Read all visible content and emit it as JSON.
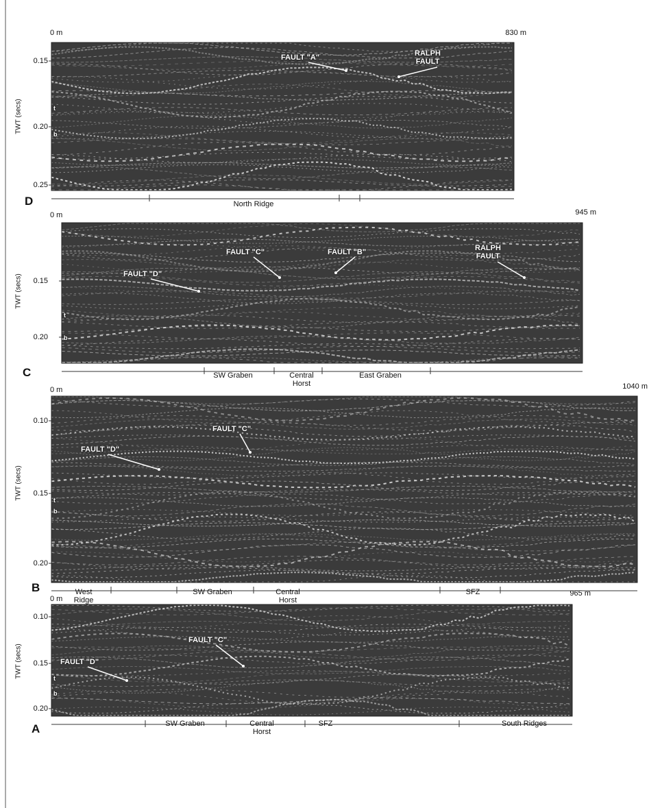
{
  "panels": [
    {
      "letter": "D",
      "start": "0 m",
      "end": "830 m",
      "axis_label": "TWT (secs)",
      "ticks": [
        "0.15",
        "0.20",
        "0.25"
      ],
      "horizons": [
        "t",
        "b"
      ],
      "annotations": [
        "FAULT \"A\"",
        "RALPH FAULT"
      ],
      "regions": [
        "North Ridge"
      ]
    },
    {
      "letter": "C",
      "start": "0 m",
      "end": "945 m",
      "axis_label": "TWT (secs)",
      "ticks": [
        "0.15",
        "0.20"
      ],
      "horizons": [
        "t",
        "b"
      ],
      "annotations": [
        "FAULT \"D\"",
        "FAULT \"C\"",
        "FAULT \"B\"",
        "RALPH FAULT"
      ],
      "regions": [
        "SW Graben",
        "Central Horst",
        "East Graben"
      ]
    },
    {
      "letter": "B",
      "start": "0 m",
      "end": "1040 m",
      "axis_label": "TWT (secs)",
      "ticks": [
        "0.10",
        "0.15",
        "0.20"
      ],
      "horizons": [
        "t",
        "b"
      ],
      "annotations": [
        "FAULT \"D\"",
        "FAULT \"C\""
      ],
      "regions": [
        "West Ridge",
        "SW Graben",
        "Central Horst",
        "SFZ"
      ]
    },
    {
      "letter": "A",
      "start": "0 m",
      "end": "965 m",
      "axis_label": "TWT (secs)",
      "ticks": [
        "0.10",
        "0.15",
        "0.20"
      ],
      "horizons": [
        "t",
        "b"
      ],
      "annotations": [
        "FAULT \"D\"",
        "FAULT \"C\""
      ],
      "regions": [
        "SW Graben",
        "Central Horst",
        "SFZ",
        "South Ridges"
      ]
    }
  ]
}
